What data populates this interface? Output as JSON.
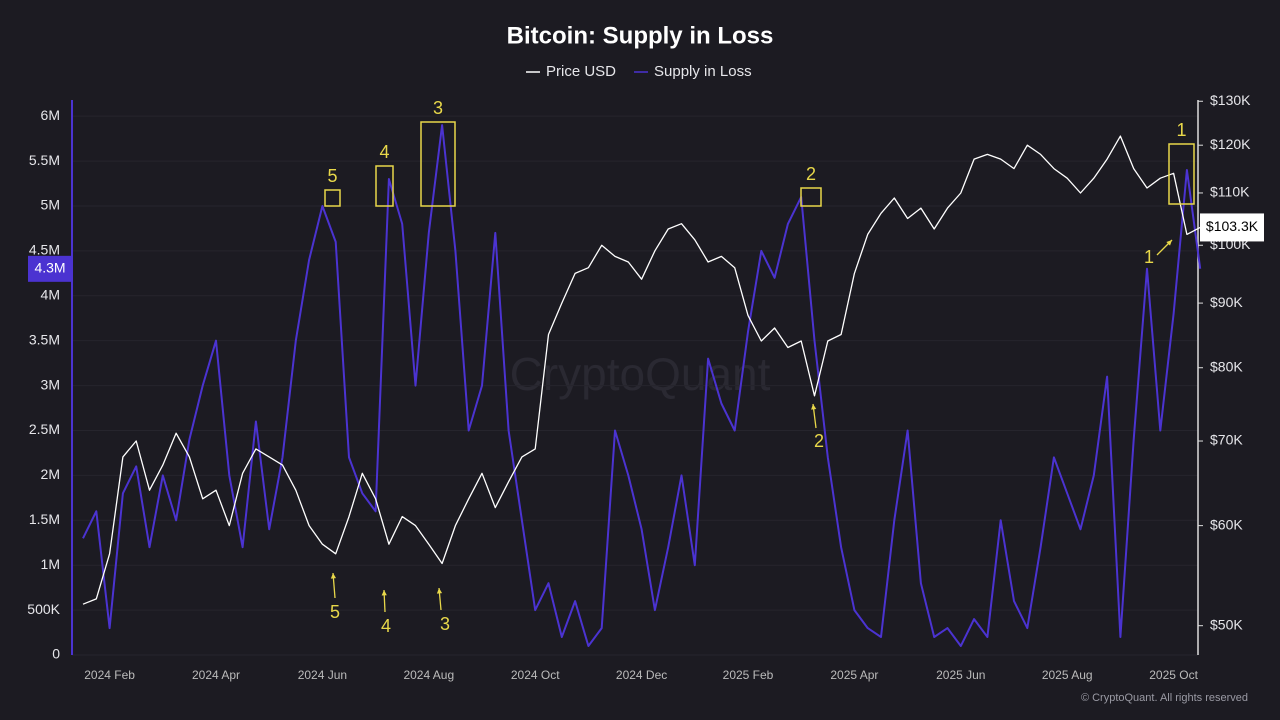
{
  "chart_data": {
    "type": "line",
    "title": "Bitcoin: Supply in Loss",
    "watermark": "CryptoQuant",
    "footer": "© CryptoQuant. All rights reserved",
    "categories": [
      null,
      null,
      "2024 Feb",
      null,
      null,
      null,
      null,
      null,
      null,
      null,
      "2024 Apr",
      null,
      null,
      null,
      null,
      null,
      null,
      null,
      "2024 Jun",
      null,
      null,
      null,
      null,
      null,
      null,
      null,
      "2024 Aug",
      null,
      null,
      null,
      null,
      null,
      null,
      null,
      "2024 Oct",
      null,
      null,
      null,
      null,
      null,
      null,
      null,
      "2024 Dec",
      null,
      null,
      null,
      null,
      null,
      null,
      null,
      "2025 Feb",
      null,
      null,
      null,
      null,
      null,
      null,
      null,
      "2025 Apr",
      null,
      null,
      null,
      null,
      null,
      null,
      null,
      "2025 Jun",
      null,
      null,
      null,
      null,
      null,
      null,
      null,
      "2025 Aug",
      null,
      null,
      null,
      null,
      null,
      null,
      null,
      "2025 Oct",
      null,
      null
    ],
    "series": [
      {
        "name": "Price USD",
        "color": "#ffffff",
        "axis": "y2",
        "current_label": "$103.3K",
        "values": [
          52000,
          52500,
          57000,
          68000,
          70000,
          64000,
          67000,
          71000,
          68000,
          63000,
          64000,
          60000,
          66000,
          69000,
          68000,
          67000,
          64000,
          60000,
          58000,
          57000,
          61000,
          66000,
          63000,
          58000,
          61000,
          60000,
          58000,
          56000,
          60000,
          63000,
          66000,
          62000,
          65000,
          68000,
          69000,
          85000,
          90000,
          95000,
          96000,
          100000,
          98000,
          97000,
          94000,
          99000,
          103000,
          104000,
          101000,
          97000,
          98000,
          96000,
          88000,
          84000,
          86000,
          83000,
          84000,
          76000,
          84000,
          85000,
          95000,
          102000,
          106000,
          109000,
          105000,
          107000,
          103000,
          107000,
          110000,
          117000,
          118000,
          117000,
          115000,
          120000,
          118000,
          115000,
          113000,
          110000,
          113000,
          117000,
          122000,
          115000,
          111000,
          113000,
          114000,
          102000,
          103300
        ]
      },
      {
        "name": "Supply in Loss",
        "color": "#4b33d1",
        "axis": "y",
        "current_label": "4.3M",
        "values": [
          1300000,
          1600000,
          300000,
          1800000,
          2100000,
          1200000,
          2000000,
          1500000,
          2400000,
          3000000,
          3500000,
          2000000,
          1200000,
          2600000,
          1400000,
          2200000,
          3500000,
          4400000,
          5000000,
          4600000,
          2200000,
          1800000,
          1600000,
          5300000,
          4800000,
          3000000,
          4700000,
          5900000,
          4500000,
          2500000,
          3000000,
          4700000,
          2500000,
          1500000,
          500000,
          800000,
          200000,
          600000,
          100000,
          300000,
          2500000,
          2000000,
          1400000,
          500000,
          1200000,
          2000000,
          1000000,
          3300000,
          2800000,
          2500000,
          3600000,
          4500000,
          4200000,
          4800000,
          5100000,
          3500000,
          2200000,
          1200000,
          500000,
          300000,
          200000,
          1500000,
          2500000,
          800000,
          200000,
          300000,
          100000,
          400000,
          200000,
          1500000,
          600000,
          300000,
          1200000,
          2200000,
          1800000,
          1400000,
          2000000,
          3100000,
          200000,
          2400000,
          4300000,
          2500000,
          3800000,
          5400000,
          4300000
        ]
      }
    ],
    "ylim": [
      0,
      6180000
    ],
    "yticks": [
      0,
      {
        "value": 500000,
        "label": "500K"
      },
      {
        "value": 1000000,
        "label": "1M"
      },
      {
        "value": 1500000,
        "label": "1.5M"
      },
      {
        "value": 2000000,
        "label": "2M"
      },
      {
        "value": 2500000,
        "label": "2.5M"
      },
      {
        "value": 3000000,
        "label": "3M"
      },
      {
        "value": 3500000,
        "label": "3.5M"
      },
      {
        "value": 4000000,
        "label": "4M"
      },
      {
        "value": 4500000,
        "label": "4.5M"
      },
      {
        "value": 5000000,
        "label": "5M"
      },
      {
        "value": 5500000,
        "label": "5.5M"
      },
      {
        "value": 6000000,
        "label": "6M"
      }
    ],
    "y2lim": [
      47400,
      130300
    ],
    "y2_log": true,
    "y2ticks": [
      {
        "value": 50000,
        "label": "$50K"
      },
      {
        "value": 60000,
        "label": "$60K"
      },
      {
        "value": 70000,
        "label": "$70K"
      },
      {
        "value": 80000,
        "label": "$80K"
      },
      {
        "value": 90000,
        "label": "$90K"
      },
      {
        "value": 100000,
        "label": "$100K"
      },
      {
        "value": 110000,
        "label": "$110K"
      },
      {
        "value": 120000,
        "label": "$120K"
      },
      {
        "value": 130000,
        "label": "$130K"
      }
    ],
    "grid": true,
    "legend": "top",
    "box_labels": [
      "5",
      "4",
      "3",
      "2",
      "1"
    ],
    "arrow_labels": [
      "5",
      "4",
      "3",
      "2",
      "1"
    ],
    "annotation_color": "#e8d84a"
  }
}
